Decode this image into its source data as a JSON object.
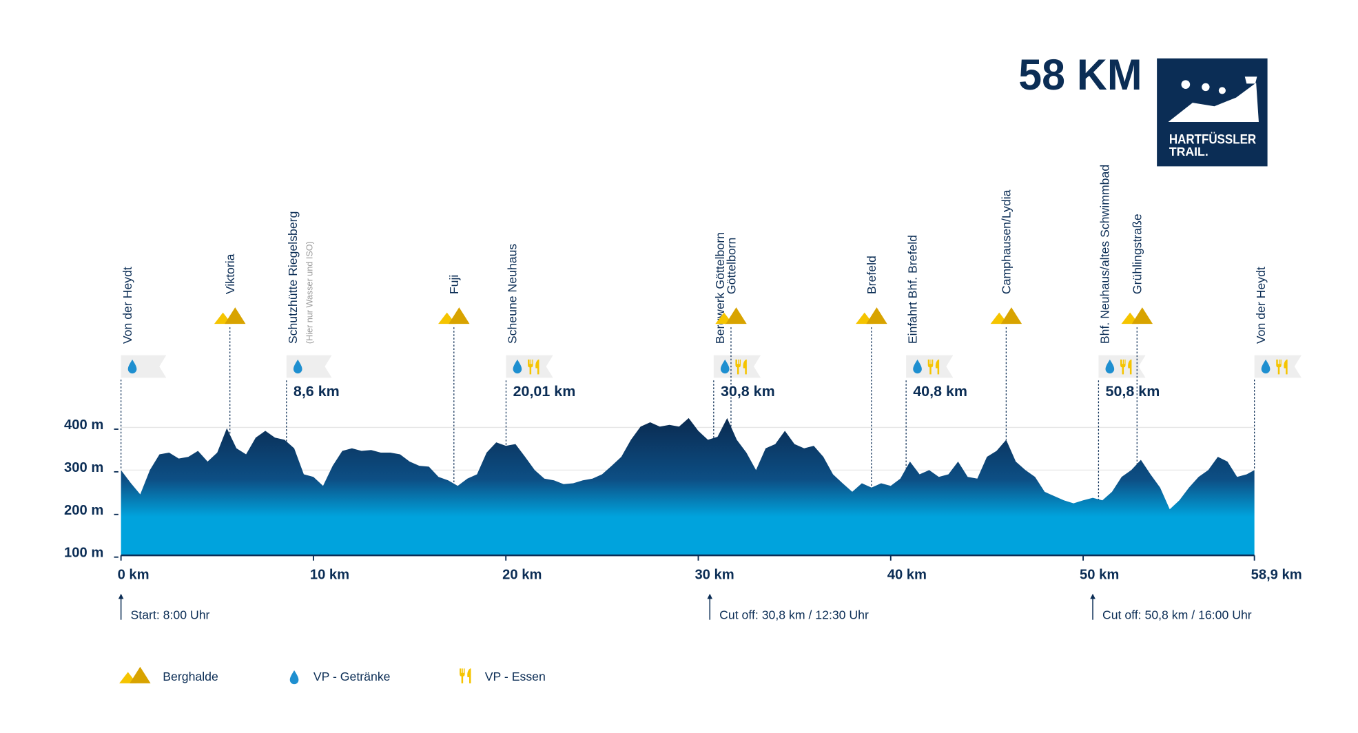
{
  "chart_data": {
    "type": "area",
    "title": "58 KM",
    "logo": [
      "HARTFÜSSLER",
      "TRAIL."
    ],
    "x": [
      0,
      0.5,
      1,
      1.5,
      2,
      2.5,
      3,
      3.5,
      4,
      4.5,
      5,
      5.5,
      6,
      6.5,
      7,
      7.5,
      8,
      8.5,
      9,
      9.5,
      10,
      10.5,
      11,
      11.5,
      12,
      12.5,
      13,
      13.5,
      14,
      14.5,
      15,
      15.5,
      16,
      16.5,
      17,
      17.5,
      18,
      18.5,
      19,
      19.5,
      20,
      20.5,
      21,
      21.5,
      22,
      22.5,
      23,
      23.5,
      24,
      24.5,
      25,
      25.5,
      26,
      26.5,
      27,
      27.5,
      28,
      28.5,
      29,
      29.5,
      30,
      30.5,
      31,
      31.5,
      32,
      32.5,
      33,
      33.5,
      34,
      34.5,
      35,
      35.5,
      36,
      36.5,
      37,
      37.5,
      38,
      38.5,
      39,
      39.5,
      40,
      40.5,
      41,
      41.5,
      42,
      42.5,
      43,
      43.5,
      44,
      44.5,
      45,
      45.5,
      46,
      46.5,
      47,
      47.5,
      48,
      48.5,
      49,
      49.5,
      50,
      50.5,
      51,
      51.5,
      52,
      52.5,
      53,
      53.5,
      54,
      54.5,
      55,
      55.5,
      56,
      56.5,
      57,
      57.5,
      58,
      58.5,
      58.9
    ],
    "values": [
      300,
      270,
      243,
      300,
      337,
      341,
      327,
      331,
      345,
      320,
      341,
      398,
      351,
      337,
      376,
      392,
      376,
      371,
      351,
      290,
      284,
      263,
      310,
      345,
      351,
      345,
      347,
      341,
      341,
      337,
      320,
      310,
      308,
      284,
      276,
      263,
      280,
      290,
      341,
      365,
      357,
      361,
      331,
      300,
      280,
      276,
      267,
      269,
      276,
      280,
      290,
      310,
      331,
      371,
      402,
      412,
      402,
      406,
      402,
      422,
      392,
      371,
      378,
      422,
      371,
      341,
      300,
      351,
      361,
      392,
      361,
      351,
      357,
      331,
      290,
      269,
      249,
      269,
      259,
      269,
      263,
      280,
      320,
      290,
      300,
      284,
      290,
      320,
      284,
      280,
      331,
      345,
      371,
      320,
      300,
      284,
      249,
      239,
      229,
      222,
      229,
      235,
      229,
      249,
      284,
      300,
      324,
      290,
      259,
      208,
      229,
      259,
      284,
      300,
      331,
      320,
      284,
      290,
      300
    ],
    "xlim": [
      0,
      58.9
    ],
    "ylim": [
      100,
      400
    ],
    "xticks": [
      {
        "value": 0,
        "label": "0 km"
      },
      {
        "value": 10,
        "label": "10 km"
      },
      {
        "value": 20,
        "label": "20 km"
      },
      {
        "value": 30,
        "label": "30 km"
      },
      {
        "value": 40,
        "label": "40 km"
      },
      {
        "value": 50,
        "label": "50 km"
      },
      {
        "value": 58.9,
        "label": "58,9 km"
      }
    ],
    "yticks": [
      {
        "value": 100,
        "label": "100 m"
      },
      {
        "value": 200,
        "label": "200 m"
      },
      {
        "value": 300,
        "label": "300 m"
      },
      {
        "value": 400,
        "label": "400 m"
      }
    ],
    "grid": true,
    "colors": {
      "top": "#0a2a50",
      "bottom": "#00a3dd",
      "halde": "#f5c400",
      "halde_dark": "#d8a300",
      "drink": "#1e8fd0",
      "food": "#f5c400"
    },
    "waypoints": [
      {
        "name": "Von der Heydt",
        "km": 0,
        "kind": "vp",
        "drink": true,
        "food": false
      },
      {
        "name": "Viktoria",
        "km": 5.66,
        "kind": "halde"
      },
      {
        "name": "Schutzhütte Riegelsberg",
        "note": "(Hier nur Wasser und ISO)",
        "km": 8.6,
        "kind": "vp",
        "drink": true,
        "food": false,
        "distance": "8,6 km"
      },
      {
        "name": "Fuji",
        "km": 17.3,
        "kind": "halde"
      },
      {
        "name": "Scheune Neuhaus",
        "km": 20.01,
        "kind": "vp",
        "drink": true,
        "food": true,
        "distance": "20,01 km"
      },
      {
        "name": "Bergwerk Göttelborn",
        "km": 30.8,
        "kind": "vp",
        "drink": true,
        "food": true,
        "distance": "30,8 km"
      },
      {
        "name": "Göttelborn",
        "km": 31.7,
        "kind": "halde"
      },
      {
        "name": "Brefeld",
        "km": 39.0,
        "kind": "halde"
      },
      {
        "name": "Einfahrt Bhf. Brefeld",
        "km": 40.8,
        "kind": "vp",
        "drink": true,
        "food": true,
        "distance": "40,8 km"
      },
      {
        "name": "Camphausen/Lydia",
        "km": 46.0,
        "kind": "halde"
      },
      {
        "name": "Bhf. Neuhaus/altes Schwimmbad",
        "km": 50.8,
        "kind": "vp",
        "drink": true,
        "food": true,
        "distance": "50,8 km"
      },
      {
        "name": "Grühlingstraße",
        "km": 52.8,
        "kind": "halde"
      },
      {
        "name": "Von der Heydt",
        "km": 58.9,
        "kind": "vp",
        "drink": true,
        "food": true
      }
    ],
    "annotations": [
      {
        "km": 0,
        "text": "Start: 8:00 Uhr"
      },
      {
        "km": 30.6,
        "text": "Cut off: 30,8 km / 12:30 Uhr"
      },
      {
        "km": 50.5,
        "text": "Cut off: 50,8 km / 16:00 Uhr"
      }
    ],
    "legend": [
      {
        "kind": "halde",
        "label": "Berghalde"
      },
      {
        "kind": "drink",
        "label": "VP - Getränke"
      },
      {
        "kind": "food",
        "label": "VP - Essen"
      }
    ]
  }
}
